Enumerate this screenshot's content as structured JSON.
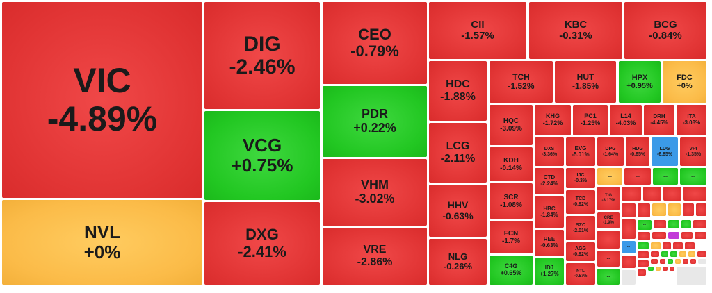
{
  "palette": {
    "down": "#e13434",
    "up": "#22c722",
    "flat": "#fbbb48",
    "ceiling": "#c23ad8",
    "floor": "#3b9ae8"
  },
  "tiles": [
    {
      "symbol": "VIC",
      "change": "-4.89%",
      "status": "down"
    },
    {
      "symbol": "NVL",
      "change": "+0%",
      "status": "flat"
    },
    {
      "symbol": "DIG",
      "change": "-2.46%",
      "status": "down"
    },
    {
      "symbol": "VCG",
      "change": "+0.75%",
      "status": "up"
    },
    {
      "symbol": "DXG",
      "change": "-2.41%",
      "status": "down"
    },
    {
      "symbol": "CEO",
      "change": "-0.79%",
      "status": "down"
    },
    {
      "symbol": "PDR",
      "change": "+0.22%",
      "status": "up"
    },
    {
      "symbol": "VHM",
      "change": "-3.02%",
      "status": "down"
    },
    {
      "symbol": "VRE",
      "change": "-2.86%",
      "status": "down"
    },
    {
      "symbol": "CII",
      "change": "-1.57%",
      "status": "down"
    },
    {
      "symbol": "KBC",
      "change": "-0.31%",
      "status": "down"
    },
    {
      "symbol": "BCG",
      "change": "-0.84%",
      "status": "down"
    },
    {
      "symbol": "HDC",
      "change": "-1.88%",
      "status": "down"
    },
    {
      "symbol": "LCG",
      "change": "-2.11%",
      "status": "down"
    },
    {
      "symbol": "HHV",
      "change": "-0.63%",
      "status": "down"
    },
    {
      "symbol": "NLG",
      "change": "-0.26%",
      "status": "down"
    },
    {
      "symbol": "TCH",
      "change": "-1.52%",
      "status": "down"
    },
    {
      "symbol": "HUT",
      "change": "-1.85%",
      "status": "down"
    },
    {
      "symbol": "HPX",
      "change": "+0.95%",
      "status": "up"
    },
    {
      "symbol": "FDC",
      "change": "+0%",
      "status": "flat"
    },
    {
      "symbol": "HQC",
      "change": "-3.09%",
      "status": "down"
    },
    {
      "symbol": "KDH",
      "change": "-0.14%",
      "status": "down"
    },
    {
      "symbol": "SCR",
      "change": "-1.08%",
      "status": "down"
    },
    {
      "symbol": "FCN",
      "change": "-1.7%",
      "status": "down"
    },
    {
      "symbol": "C4G",
      "change": "+0.65%",
      "status": "up"
    },
    {
      "symbol": "KHG",
      "change": "-1.72%",
      "status": "down"
    },
    {
      "symbol": "PC1",
      "change": "-1.25%",
      "status": "down"
    },
    {
      "symbol": "L14",
      "change": "-4.03%",
      "status": "down"
    },
    {
      "symbol": "DRH",
      "change": "-4.45%",
      "status": "down"
    },
    {
      "symbol": "ITA",
      "change": "-3.08%",
      "status": "down"
    },
    {
      "symbol": "DXS",
      "change": "-3.36%",
      "status": "down"
    },
    {
      "symbol": "EVG",
      "change": "-5.01%",
      "status": "down"
    },
    {
      "symbol": "DPG",
      "change": "-1.64%",
      "status": "down"
    },
    {
      "symbol": "HDG",
      "change": "-0.65%",
      "status": "down"
    },
    {
      "symbol": "LDG",
      "change": "-6.85%",
      "status": "floor"
    },
    {
      "symbol": "VPI",
      "change": "-1.35%",
      "status": "down"
    },
    {
      "symbol": "CTD",
      "change": "-2.24%",
      "status": "down"
    },
    {
      "symbol": "HBC",
      "change": "-1.84%",
      "status": "down"
    },
    {
      "symbol": "REE",
      "change": "-0.63%",
      "status": "down"
    },
    {
      "symbol": "IDJ",
      "change": "+1.27%",
      "status": "up"
    },
    {
      "symbol": "IJC",
      "change": "-0.3%",
      "status": "down"
    },
    {
      "symbol": "TCD",
      "change": "-0.92%",
      "status": "down"
    },
    {
      "symbol": "SZC",
      "change": "-2.01%",
      "status": "down"
    },
    {
      "symbol": "AGG",
      "change": "-0.92%",
      "status": "down"
    },
    {
      "symbol": "NTL",
      "change": "-0.57%",
      "status": "down"
    },
    {
      "symbol": "TIG",
      "change": "-3.17%",
      "status": "down"
    },
    {
      "symbol": "CRE",
      "change": "-1.9%",
      "status": "down"
    },
    {
      "symbol": "...",
      "change": "",
      "status": "flat"
    },
    {
      "symbol": "...",
      "change": "",
      "status": "down"
    },
    {
      "symbol": "...",
      "change": "",
      "status": "up"
    },
    {
      "symbol": "...",
      "change": "",
      "status": "up"
    },
    {
      "symbol": "...",
      "change": "",
      "status": "down"
    },
    {
      "symbol": "...",
      "change": "",
      "status": "down"
    },
    {
      "symbol": "...",
      "change": "",
      "status": "down"
    },
    {
      "symbol": "...",
      "change": "",
      "status": "down"
    },
    {
      "symbol": "...",
      "change": "",
      "status": "down"
    },
    {
      "symbol": "...",
      "change": "",
      "status": "down"
    },
    {
      "symbol": "...",
      "change": "",
      "status": "up"
    },
    {
      "symbol": "...",
      "change": "",
      "status": "floor"
    },
    {
      "symbol": "...",
      "change": "",
      "status": "up"
    },
    {
      "symbol": "...",
      "change": "",
      "status": "down"
    }
  ]
}
